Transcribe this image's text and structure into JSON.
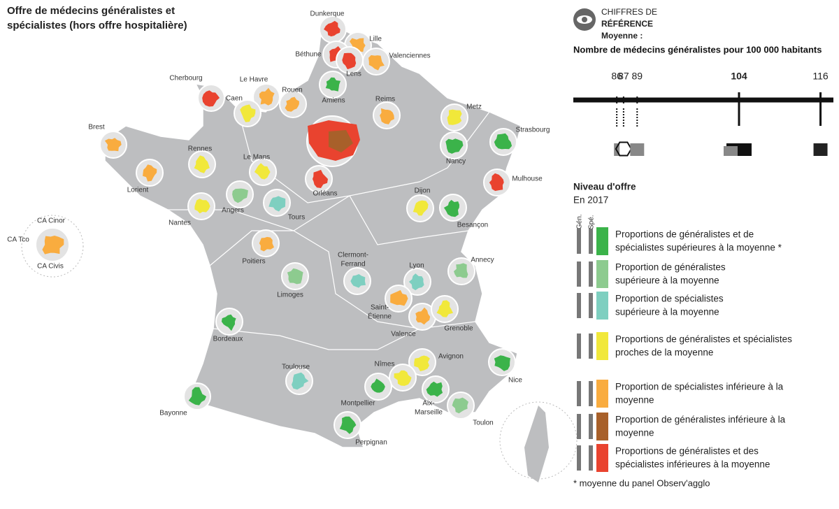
{
  "title": [
    "Offre de médecins généralistes et",
    "spécialistes (hors offre hospitalière)"
  ],
  "reference": {
    "heading": [
      "CHIFFRES DE",
      "RÉFÉRENCE"
    ],
    "average_label": "Moyenne :",
    "metric": "Nombre de médecins généralistes pour 100 000 habitants",
    "xlim": [
      79.6,
      117.9
    ],
    "ticks": [
      86,
      87,
      89,
      104,
      116
    ]
  },
  "legend": {
    "title": "Niveau d'offre",
    "year": "En 2017",
    "columns": [
      "Gén.",
      "Spé."
    ],
    "items": [
      {
        "color": "#3bb34a",
        "label": [
          "Proportions de généralistes et de",
          "spécialistes supérieures à la moyenne *"
        ]
      },
      {
        "color": "#8dcb8f",
        "label": [
          "Proportion de généralistes",
          "supérieure à la moyenne"
        ]
      },
      {
        "color": "#7ecfc0",
        "label": [
          "Proportion de spécialistes",
          "supérieure à la moyenne"
        ]
      },
      {
        "color": "#f1e83a",
        "label": [
          "Proportions de généralistes et spécialistes",
          "proches de la moyenne"
        ]
      },
      {
        "color": "#f9ac3f",
        "label": [
          "Proportion de spécialistes inférieure à la",
          "moyenne"
        ]
      },
      {
        "color": "#a8602a",
        "label": [
          "Proportion de généralistes inférieure à la",
          "moyenne"
        ]
      },
      {
        "color": "#e9432f",
        "label": [
          "Proportions de généralistes et des",
          "spécialistes inférieures à la moyenne"
        ]
      }
    ],
    "footnote": "* moyenne du panel Observ'agglo"
  },
  "reunion": {
    "names": [
      "CA Cinor",
      "CA Tco",
      "CA Civis"
    ],
    "color": "#f9ac3f"
  },
  "cities": [
    {
      "name": "Dunkerque",
      "color": "#e9432f"
    },
    {
      "name": "Lille",
      "color": "#f9ac3f"
    },
    {
      "name": "Béthune",
      "color": "#e9432f"
    },
    {
      "name": "Valenciennes",
      "color": "#f9ac3f"
    },
    {
      "name": "Lens",
      "color": "#e9432f"
    },
    {
      "name": "Cherbourg",
      "color": "#e9432f"
    },
    {
      "name": "Le Havre",
      "color": "#f9ac3f"
    },
    {
      "name": "Caen",
      "color": "#f1e83a"
    },
    {
      "name": "Rouen",
      "color": "#f9ac3f"
    },
    {
      "name": "Amiens",
      "color": "#3bb34a"
    },
    {
      "name": "Reims",
      "color": "#f9ac3f"
    },
    {
      "name": "Metz",
      "color": "#f1e83a"
    },
    {
      "name": "Strasbourg",
      "color": "#3bb34a"
    },
    {
      "name": "Nancy",
      "color": "#3bb34a"
    },
    {
      "name": "Brest",
      "color": "#f9ac3f"
    },
    {
      "name": "Rennes",
      "color": "#f1e83a"
    },
    {
      "name": "Le Mans",
      "color": "#f1e83a"
    },
    {
      "name": "Lorient",
      "color": "#f9ac3f"
    },
    {
      "name": "Orléans",
      "color": "#e9432f"
    },
    {
      "name": "Mulhouse",
      "color": "#e9432f"
    },
    {
      "name": "Angers",
      "color": "#8dcb8f"
    },
    {
      "name": "Tours",
      "color": "#7ecfc0"
    },
    {
      "name": "Nantes",
      "color": "#f1e83a"
    },
    {
      "name": "Dijon",
      "color": "#f1e83a"
    },
    {
      "name": "Besançon",
      "color": "#3bb34a"
    },
    {
      "name": "Poitiers",
      "color": "#f9ac3f"
    },
    {
      "name": [
        "Clermont-",
        "Ferrand"
      ],
      "color": "#7ecfc0"
    },
    {
      "name": "Limoges",
      "color": "#8dcb8f"
    },
    {
      "name": "Lyon",
      "color": "#7ecfc0"
    },
    {
      "name": "Annecy",
      "color": "#8dcb8f"
    },
    {
      "name": [
        "Saint-",
        "Étienne"
      ],
      "color": "#f9ac3f"
    },
    {
      "name": "Valence",
      "color": "#f9ac3f"
    },
    {
      "name": "Grenoble",
      "color": "#f1e83a"
    },
    {
      "name": "Bordeaux",
      "color": "#3bb34a"
    },
    {
      "name": "Avignon",
      "color": "#f1e83a"
    },
    {
      "name": "Nice",
      "color": "#3bb34a"
    },
    {
      "name": "Toulouse",
      "color": "#7ecfc0"
    },
    {
      "name": "Nîmes",
      "color": "#f1e83a"
    },
    {
      "name": "Montpellier",
      "color": "#3bb34a"
    },
    {
      "name": [
        "Aix-",
        "Marseille"
      ],
      "color": "#3bb34a"
    },
    {
      "name": "Toulon",
      "color": "#8dcb8f"
    },
    {
      "name": "Bayonne",
      "color": "#3bb34a"
    },
    {
      "name": "Perpignan",
      "color": "#3bb34a"
    }
  ]
}
